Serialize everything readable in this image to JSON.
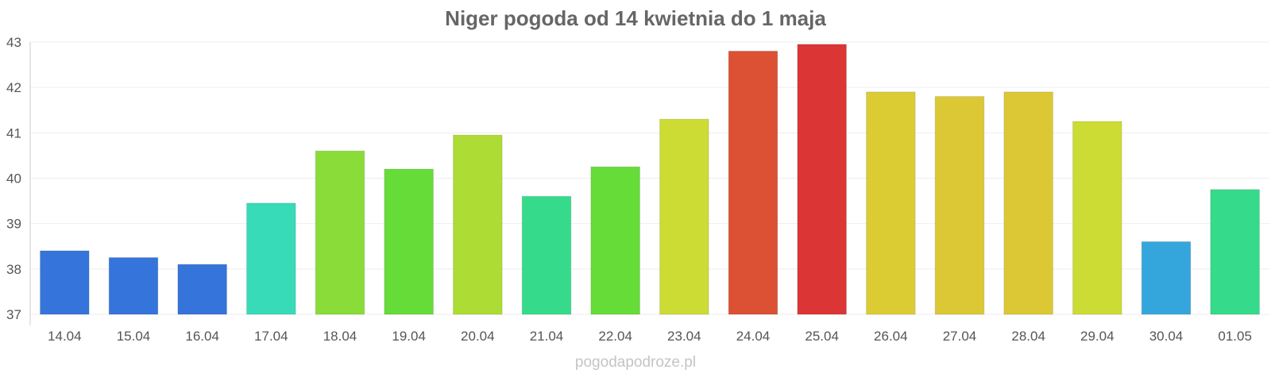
{
  "chart_data": {
    "type": "bar",
    "title": "Niger pogoda od 14 kwietnia do 1 maja",
    "xlabel": "",
    "ylabel": "",
    "categories": [
      "14.04",
      "15.04",
      "16.04",
      "17.04",
      "18.04",
      "19.04",
      "20.04",
      "21.04",
      "22.04",
      "23.04",
      "24.04",
      "25.04",
      "26.04",
      "27.04",
      "28.04",
      "29.04",
      "30.04",
      "01.05"
    ],
    "values": [
      38.4,
      38.25,
      38.1,
      39.45,
      40.6,
      40.2,
      40.95,
      39.6,
      40.25,
      41.3,
      42.8,
      42.95,
      41.9,
      41.8,
      41.9,
      41.25,
      38.6,
      39.75
    ],
    "colors": [
      "#3575db",
      "#3575db",
      "#3575db",
      "#38dbb8",
      "#8adc38",
      "#66dc38",
      "#addc34",
      "#35db8a",
      "#66dc38",
      "#ccdc34",
      "#dc5034",
      "#dc3535",
      "#dccc34",
      "#dcc834",
      "#dcc834",
      "#ccdc34",
      "#35a6db",
      "#35db8a"
    ],
    "ylim": [
      37,
      43
    ],
    "yticks": [
      "37",
      "38",
      "39",
      "40",
      "41",
      "42",
      "43"
    ],
    "grid": true,
    "legend": "none"
  },
  "watermark": "pogodapodroze.pl"
}
